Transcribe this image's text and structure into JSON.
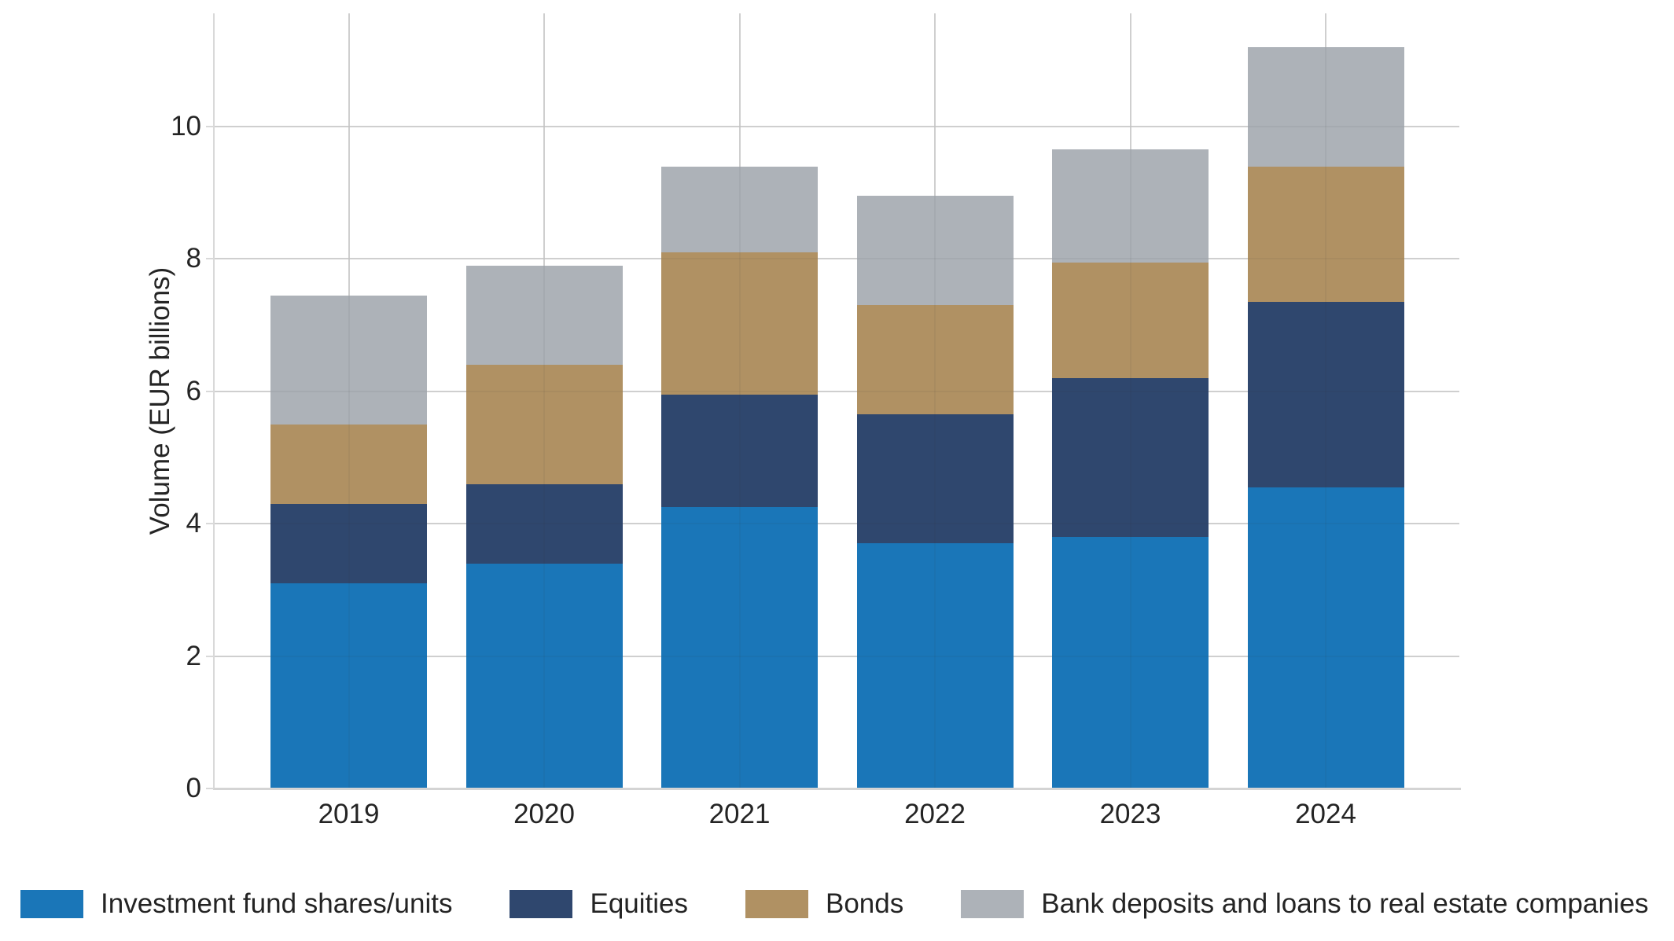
{
  "chart_data": {
    "type": "bar",
    "stacked": true,
    "title": "",
    "xlabel": "",
    "ylabel": "Volume (EUR billions)",
    "categories": [
      "2019",
      "2020",
      "2021",
      "2022",
      "2023",
      "2024"
    ],
    "series": [
      {
        "name": "Investment fund shares/units",
        "color": "#1a76b8",
        "values": [
          3.1,
          3.4,
          4.25,
          3.7,
          3.8,
          4.55
        ]
      },
      {
        "name": "Equities",
        "color": "#2f476e",
        "values": [
          1.2,
          1.2,
          1.7,
          1.95,
          2.4,
          2.8
        ]
      },
      {
        "name": "Bonds",
        "color": "#b09163",
        "values": [
          1.2,
          1.8,
          2.15,
          1.65,
          1.75,
          2.05
        ]
      },
      {
        "name": "Bank deposits and loans to real estate companies",
        "color": "#adb2b8",
        "values": [
          1.95,
          1.5,
          1.3,
          1.65,
          1.7,
          1.8
        ]
      }
    ],
    "stacked_totals": [
      7.45,
      7.9,
      9.4,
      8.95,
      9.65,
      11.2
    ],
    "yticks": [
      0,
      2,
      4,
      6,
      8,
      10
    ],
    "ylim": [
      0,
      11.71
    ],
    "grid": true,
    "grid_color": "#d9d9d9",
    "text_color": "#242424",
    "background_color": "#ffffff",
    "legend_position": "bottom"
  }
}
